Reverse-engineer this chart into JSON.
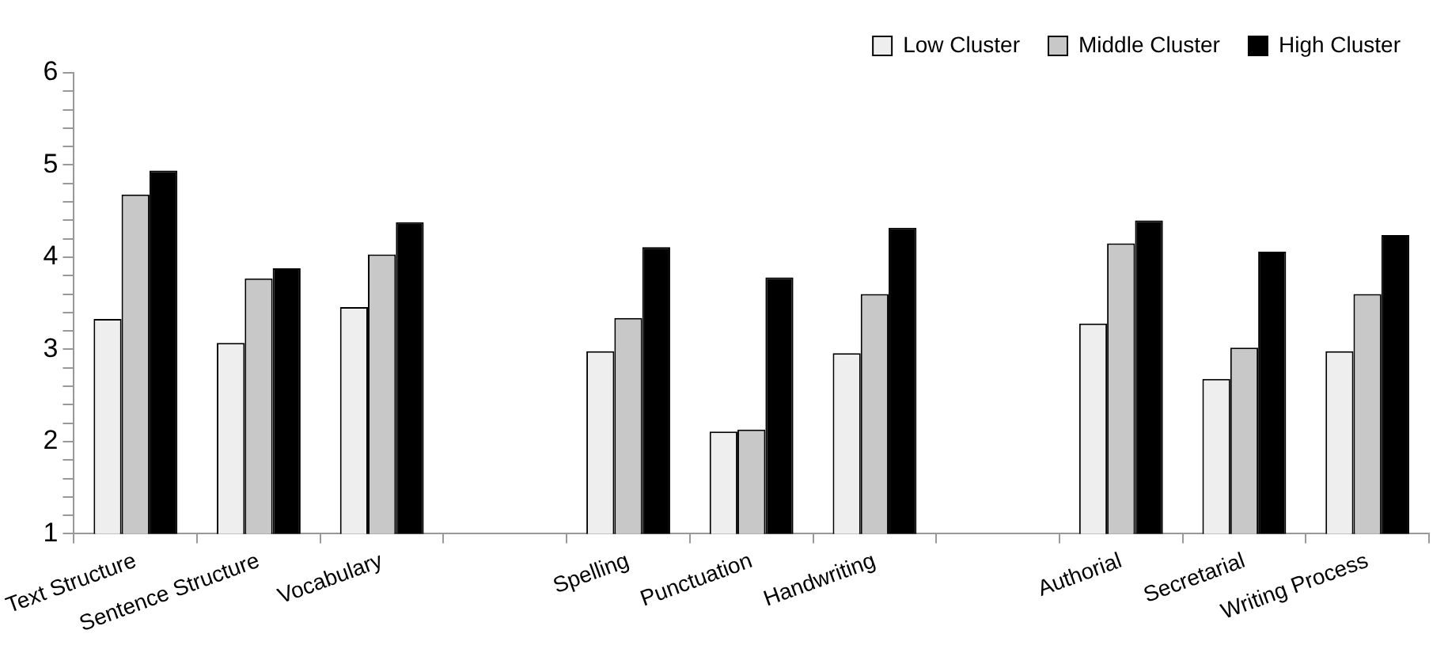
{
  "chart_data": {
    "type": "bar",
    "categories": [
      "Text Structure",
      "Sentence Structure",
      "Vocabulary",
      null,
      "Spelling",
      "Punctuation",
      "Handwriting",
      null,
      "Authorial",
      "Secretarial",
      "Writing Process"
    ],
    "series": [
      {
        "name": "Low Cluster",
        "color": "#eeeeee",
        "values": [
          3.33,
          3.07,
          3.46,
          null,
          2.98,
          2.11,
          2.96,
          null,
          3.28,
          2.68,
          2.98
        ]
      },
      {
        "name": "Middle Cluster",
        "color": "#c8c8c8",
        "values": [
          4.68,
          3.77,
          4.03,
          null,
          3.34,
          2.13,
          3.6,
          null,
          4.15,
          3.02,
          3.6
        ]
      },
      {
        "name": "High Cluster",
        "color": "#000000",
        "values": [
          4.94,
          3.88,
          4.38,
          null,
          4.11,
          3.78,
          4.32,
          null,
          4.4,
          4.06,
          4.24
        ]
      }
    ],
    "ylim": [
      1,
      6
    ],
    "yticks": [
      1,
      {
        "value": 1.2,
        "label": null
      },
      {
        "value": 1.4,
        "label": null
      },
      {
        "value": 1.6,
        "label": null
      },
      {
        "value": 1.8,
        "label": null
      },
      2,
      {
        "value": 2.2,
        "label": null
      },
      {
        "value": 2.4,
        "label": null
      },
      {
        "value": 2.6,
        "label": null
      },
      {
        "value": 2.8,
        "label": null
      },
      3,
      {
        "value": 3.2,
        "label": null
      },
      {
        "value": 3.4,
        "label": null
      },
      {
        "value": 3.6,
        "label": null
      },
      {
        "value": 3.8,
        "label": null
      },
      4,
      {
        "value": 4.2,
        "label": null
      },
      {
        "value": 4.4,
        "label": null
      },
      {
        "value": 4.6,
        "label": null
      },
      {
        "value": 4.8,
        "label": null
      },
      5,
      {
        "value": 5.2,
        "label": null
      },
      {
        "value": 5.4,
        "label": null
      },
      {
        "value": 5.6,
        "label": null
      },
      {
        "value": 5.8,
        "label": null
      },
      6
    ],
    "grid": false,
    "legend": "top right"
  }
}
